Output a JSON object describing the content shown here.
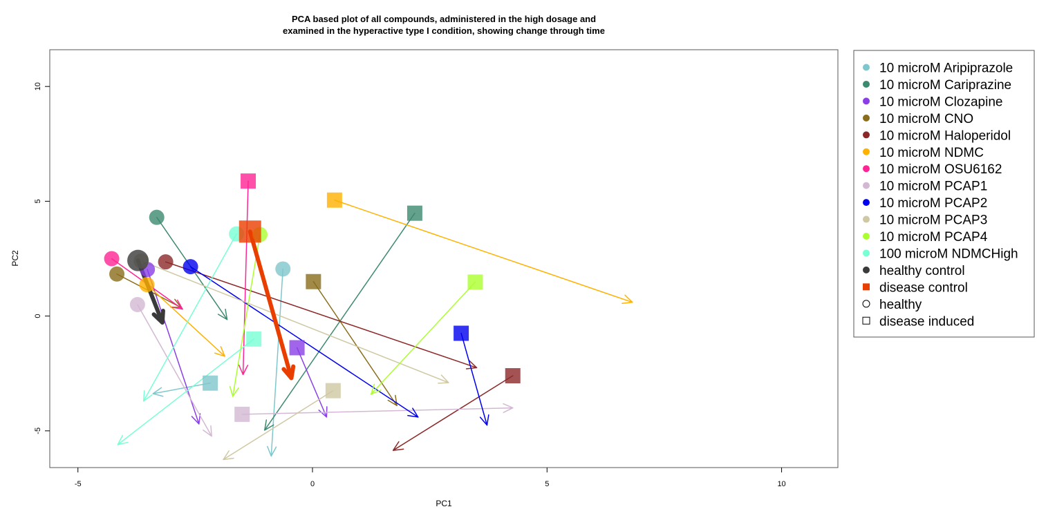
{
  "chart_data": {
    "type": "scatter",
    "title_line1": "PCA based plot of all compounds, administered in the high dosage and",
    "title_line2": "examined in the hyperactive type I condition, showing change through time",
    "xlabel": "PC1",
    "ylabel": "PC2",
    "xlim": [
      -5.6,
      11.2
    ],
    "ylim": [
      -6.6,
      11.6
    ],
    "xticks": [
      -5,
      0,
      5,
      10
    ],
    "yticks": [
      -5,
      0,
      5,
      10
    ],
    "grid": false,
    "legend_position": "right",
    "colors": {
      "aripiprazole": "#7ec7cc",
      "cariprazine": "#3d8a6f",
      "clozapine": "#8a3ee6",
      "cno": "#8a6d1a",
      "haloperidol": "#8c2828",
      "ndmc": "#ffb100",
      "osu6162": "#ff2494",
      "pcap1": "#d3b8d3",
      "pcap2": "#0000ee",
      "pcap3": "#cfc8a3",
      "pcap4": "#acff2f",
      "ndmchigh": "#79ffd4",
      "healthy_control": "#3a3a3a",
      "disease_control": "#ea3e00"
    },
    "legend": [
      {
        "label": "10 microM Aripiprazole",
        "key": "aripiprazole",
        "marker": "circle"
      },
      {
        "label": "10 microM Cariprazine",
        "key": "cariprazine",
        "marker": "circle"
      },
      {
        "label": "10 microM Clozapine",
        "key": "clozapine",
        "marker": "circle"
      },
      {
        "label": "10 microM CNO",
        "key": "cno",
        "marker": "circle"
      },
      {
        "label": "10 microM Haloperidol",
        "key": "haloperidol",
        "marker": "circle"
      },
      {
        "label": "10 microM NDMC",
        "key": "ndmc",
        "marker": "circle"
      },
      {
        "label": "10 microM OSU6162",
        "key": "osu6162",
        "marker": "circle"
      },
      {
        "label": "10 microM PCAP1",
        "key": "pcap1",
        "marker": "circle"
      },
      {
        "label": "10 microM PCAP2",
        "key": "pcap2",
        "marker": "circle"
      },
      {
        "label": "10 microM PCAP3",
        "key": "pcap3",
        "marker": "circle"
      },
      {
        "label": "10 microM PCAP4",
        "key": "pcap4",
        "marker": "circle"
      },
      {
        "label": "100 microM NDMCHigh",
        "key": "ndmchigh",
        "marker": "circle"
      },
      {
        "label": "healthy control",
        "key": "healthy_control",
        "marker": "circle"
      },
      {
        "label": "disease control",
        "key": "disease_control",
        "marker": "square"
      },
      {
        "label": "healthy",
        "key": "",
        "marker": "open-circle"
      },
      {
        "label": "disease induced",
        "key": "",
        "marker": "open-square"
      }
    ],
    "series": [
      {
        "key": "aripiprazole",
        "healthy": {
          "x": -0.63,
          "y": 2.05,
          "to": [
            -0.88,
            -6.1
          ]
        },
        "disease": {
          "x": -2.18,
          "y": -2.92,
          "to": [
            -3.4,
            -3.38
          ]
        }
      },
      {
        "key": "cariprazine",
        "healthy": {
          "x": -3.32,
          "y": 4.3,
          "to": [
            -1.82,
            -0.15
          ]
        },
        "disease": {
          "x": 2.18,
          "y": 4.48,
          "to": [
            -1.02,
            -4.97
          ]
        }
      },
      {
        "key": "clozapine",
        "healthy": {
          "x": -3.52,
          "y": 2.03,
          "to": [
            -2.42,
            -4.7
          ]
        },
        "disease": {
          "x": -0.33,
          "y": -1.38,
          "to": [
            0.3,
            -4.4
          ]
        }
      },
      {
        "key": "cno",
        "healthy": {
          "x": -4.17,
          "y": 1.83,
          "to": [
            -2.8,
            0.37
          ]
        },
        "disease": {
          "x": 0.02,
          "y": 1.5,
          "to": [
            1.8,
            -3.9
          ]
        }
      },
      {
        "key": "haloperidol",
        "healthy": {
          "x": -3.13,
          "y": 2.36,
          "to": [
            3.5,
            -2.25
          ]
        },
        "disease": {
          "x": 4.27,
          "y": -2.6,
          "to": [
            1.72,
            -5.85
          ]
        }
      },
      {
        "key": "ndmc",
        "healthy": {
          "x": -3.53,
          "y": 1.37,
          "to": [
            -1.87,
            -1.75
          ]
        },
        "disease": {
          "x": 0.47,
          "y": 5.05,
          "to": [
            6.82,
            0.6
          ]
        }
      },
      {
        "key": "osu6162",
        "healthy": {
          "x": -4.28,
          "y": 2.5,
          "to": [
            -2.77,
            0.3
          ]
        },
        "disease": {
          "x": -1.37,
          "y": 5.88,
          "to": [
            -1.48,
            -2.55
          ]
        }
      },
      {
        "key": "pcap1",
        "healthy": {
          "x": -3.73,
          "y": 0.5,
          "to": [
            -2.15,
            -5.23
          ]
        },
        "disease": {
          "x": -1.5,
          "y": -4.28,
          "to": [
            4.27,
            -4.0
          ]
        }
      },
      {
        "key": "pcap2",
        "healthy": {
          "x": -2.6,
          "y": 2.15,
          "to": [
            2.25,
            -4.4
          ]
        },
        "disease": {
          "x": 3.17,
          "y": -0.75,
          "to": [
            3.72,
            -4.75
          ]
        }
      },
      {
        "key": "pcap3",
        "healthy": {
          "x": -3.65,
          "y": 2.4,
          "to": [
            2.9,
            -2.9
          ]
        },
        "disease": {
          "x": 0.44,
          "y": -3.25,
          "to": [
            -1.9,
            -6.25
          ]
        }
      },
      {
        "key": "pcap4",
        "healthy": {
          "x": -1.12,
          "y": 3.55,
          "to": [
            -1.7,
            -3.5
          ]
        },
        "disease": {
          "x": 3.47,
          "y": 1.48,
          "to": [
            1.25,
            -3.4
          ]
        }
      },
      {
        "key": "ndmchigh",
        "healthy": {
          "x": -1.62,
          "y": 3.58,
          "to": [
            -3.6,
            -3.7
          ]
        },
        "disease": {
          "x": -1.25,
          "y": -1.0,
          "to": [
            -4.15,
            -5.6
          ]
        }
      },
      {
        "key": "healthy_control",
        "healthy": {
          "x": -3.72,
          "y": 2.42,
          "to": [
            -3.2,
            -0.28
          ]
        },
        "control": true
      },
      {
        "key": "disease_control",
        "disease": {
          "x": -1.33,
          "y": 3.68,
          "to": [
            -0.45,
            -2.7
          ]
        },
        "control": true
      }
    ]
  }
}
